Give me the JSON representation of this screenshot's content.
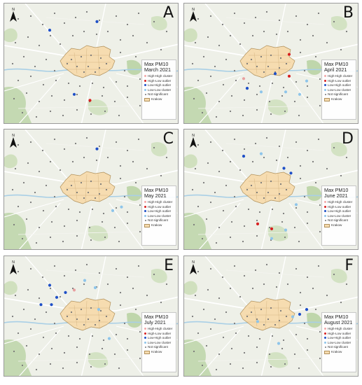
{
  "panels": [
    {
      "letter": "A",
      "title_line1": "Max PM10",
      "title_line2": "March 2021",
      "points": [
        [
          0.26,
          0.22,
          "#1e4fc7"
        ],
        [
          0.53,
          0.15,
          "#1e4fc7"
        ],
        [
          0.4,
          0.75,
          "#1e4fc7"
        ],
        [
          0.49,
          0.8,
          "#d72020"
        ]
      ]
    },
    {
      "letter": "B",
      "title_line1": "Max PM10",
      "title_line2": "April 2021",
      "points": [
        [
          0.6,
          0.42,
          "#d72020"
        ],
        [
          0.6,
          0.6,
          "#d72020"
        ],
        [
          0.52,
          0.58,
          "#1e4fc7"
        ],
        [
          0.36,
          0.7,
          "#1e4fc7"
        ],
        [
          0.34,
          0.62,
          "#e8a0a0"
        ],
        [
          0.44,
          0.73,
          "#8ec5ea"
        ],
        [
          0.58,
          0.73,
          "#8ec5ea"
        ],
        [
          0.7,
          0.64,
          "#8ec5ea"
        ],
        [
          0.66,
          0.75,
          "#8ec5ea"
        ]
      ]
    },
    {
      "letter": "C",
      "title_line1": "Max PM10",
      "title_line2": "May 2021",
      "points": [
        [
          0.53,
          0.16,
          "#1e4fc7"
        ],
        [
          0.62,
          0.67,
          "#8ec5ea"
        ],
        [
          0.67,
          0.64,
          "#8ec5ea"
        ]
      ]
    },
    {
      "letter": "D",
      "title_line1": "Max PM10",
      "title_line2": "June 2021",
      "points": [
        [
          0.34,
          0.22,
          "#1e4fc7"
        ],
        [
          0.57,
          0.32,
          "#1e4fc7"
        ],
        [
          0.61,
          0.36,
          "#1e4fc7"
        ],
        [
          0.5,
          0.82,
          "#d72020"
        ],
        [
          0.42,
          0.78,
          "#d72020"
        ],
        [
          0.44,
          0.2,
          "#8ec5ea"
        ],
        [
          0.64,
          0.62,
          "#8ec5ea"
        ],
        [
          0.58,
          0.83,
          "#8ec5ea"
        ],
        [
          0.5,
          0.9,
          "#8ec5ea"
        ]
      ]
    },
    {
      "letter": "E",
      "title_line1": "Max PM10",
      "title_line2": "July 2021",
      "points": [
        [
          0.26,
          0.24,
          "#1e4fc7"
        ],
        [
          0.3,
          0.34,
          "#1e4fc7"
        ],
        [
          0.35,
          0.3,
          "#1e4fc7"
        ],
        [
          0.27,
          0.4,
          "#1e4fc7"
        ],
        [
          0.21,
          0.4,
          "#1e4fc7"
        ],
        [
          0.4,
          0.28,
          "#e8a0a0"
        ],
        [
          0.46,
          0.2,
          "#8ec5ea"
        ],
        [
          0.52,
          0.26,
          "#8ec5ea"
        ],
        [
          0.54,
          0.44,
          "#8ec5ea"
        ],
        [
          0.6,
          0.68,
          "#8ec5ea"
        ]
      ]
    },
    {
      "letter": "F",
      "title_line1": "Max PM10",
      "title_line2": "August 2021",
      "points": [
        [
          0.66,
          0.48,
          "#1e4fc7"
        ],
        [
          0.7,
          0.44,
          "#1e4fc7"
        ],
        [
          0.62,
          0.5,
          "#8ec5ea"
        ],
        [
          0.42,
          0.54,
          "#8ec5ea"
        ],
        [
          0.54,
          0.72,
          "#8ec5ea"
        ]
      ]
    }
  ],
  "legend": {
    "high_high": "High-High cluster",
    "high_low": "High-Low outlier",
    "low_high": "Low-High outlier",
    "low_low": "Low-Low cluster",
    "not_significant": "Not significant",
    "krakow": "Krakow"
  },
  "north_label": "N",
  "colors": {
    "high_high": "#f2a8a8",
    "high_low": "#d72020",
    "low_high": "#1e4fc7",
    "low_low": "#8ec5ea",
    "not_significant": "#777777",
    "krakow_fill": "#f6dcb0",
    "krakow_border": "#b0905a",
    "basemap": "#eef0e8",
    "forest": "#b9d3a4",
    "road": "#ffffff",
    "water": "#a9cfe6"
  }
}
